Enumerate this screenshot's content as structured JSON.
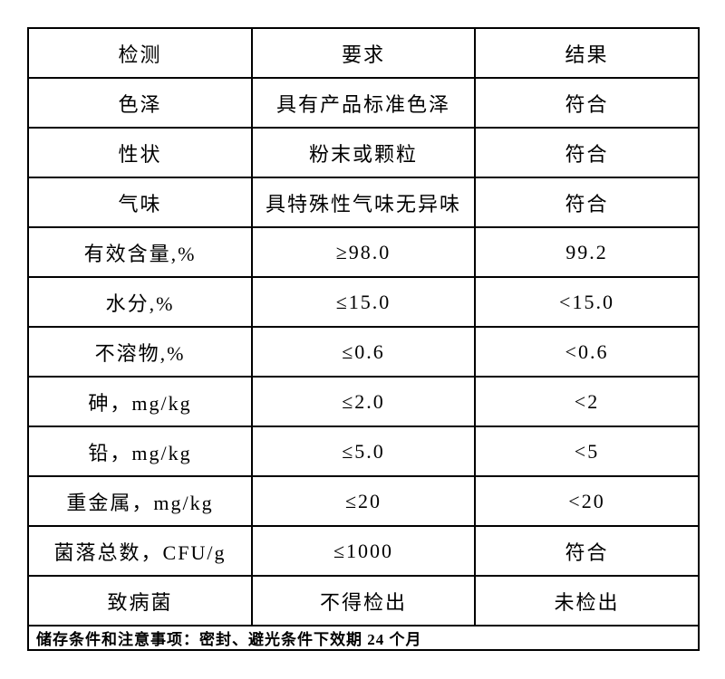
{
  "table": {
    "headers": {
      "test": "检测",
      "requirement": "要求",
      "result": "结果"
    },
    "rows": [
      {
        "item": "色泽",
        "requirement": "具有产品标准色泽",
        "result": "符合"
      },
      {
        "item": "性状",
        "requirement": "粉末或颗粒",
        "result": "符合"
      },
      {
        "item": "气味",
        "requirement": "具特殊性气味无异味",
        "result": "符合"
      },
      {
        "item": "有效含量,%",
        "requirement": "≥98.0",
        "result": "99.2"
      },
      {
        "item": "水分,%",
        "requirement": "≤15.0",
        "result": "<15.0"
      },
      {
        "item": "不溶物,%",
        "requirement": "≤0.6",
        "result": "<0.6"
      },
      {
        "item": "砷，mg/kg",
        "requirement": "≤2.0",
        "result": "<2"
      },
      {
        "item": "铅，mg/kg",
        "requirement": "≤5.0",
        "result": "<5"
      },
      {
        "item": "重金属，mg/kg",
        "requirement": "≤20",
        "result": "<20"
      },
      {
        "item": "菌落总数，CFU/g",
        "requirement": "≤1000",
        "result": "符合"
      },
      {
        "item": "致病菌",
        "requirement": "不得检出",
        "result": "未检出"
      }
    ],
    "footer_note": "储存条件和注意事项：密封、避光条件下效期 24 个月",
    "border_color": "#000000",
    "background_color": "#ffffff"
  }
}
